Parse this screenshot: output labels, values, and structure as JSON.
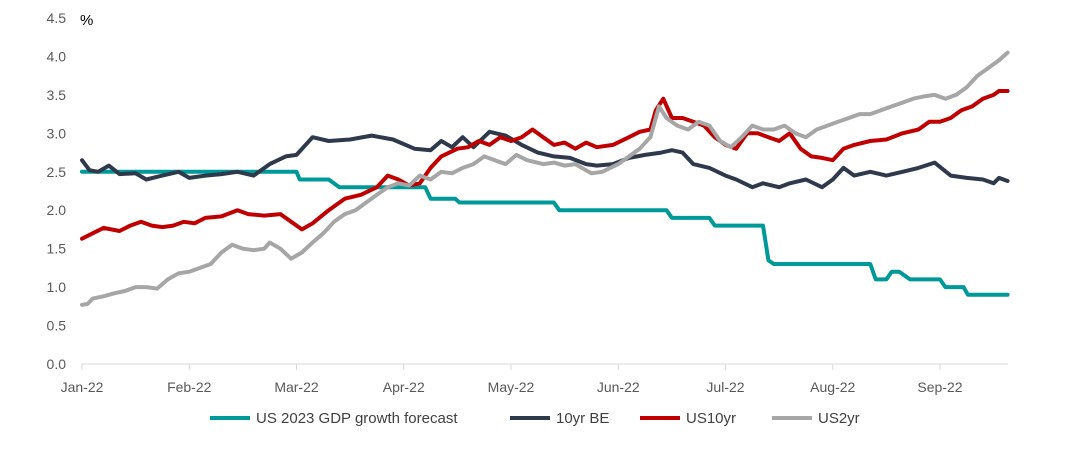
{
  "chart_data": {
    "type": "line",
    "ylabel": "%",
    "ylim": [
      0,
      4.5
    ],
    "y_ticks": [
      "0.0",
      "0.5",
      "1.0",
      "1.5",
      "2.0",
      "2.5",
      "3.0",
      "3.5",
      "4.0",
      "4.5"
    ],
    "x_ticks": [
      "Jan-22",
      "Feb-22",
      "Mar-22",
      "Apr-22",
      "May-22",
      "Jun-22",
      "Jul-22",
      "Aug-22",
      "Sep-22"
    ],
    "xlim": [
      0,
      8.63
    ],
    "grid": false,
    "legend_position": "bottom",
    "series": [
      {
        "name": "US 2023 GDP growth forecast",
        "color": "#009999",
        "points": [
          [
            0,
            2.5
          ],
          [
            2.0,
            2.5
          ],
          [
            2.03,
            2.4
          ],
          [
            2.3,
            2.4
          ],
          [
            2.4,
            2.3
          ],
          [
            3.2,
            2.3
          ],
          [
            3.25,
            2.15
          ],
          [
            3.48,
            2.15
          ],
          [
            3.52,
            2.1
          ],
          [
            4.4,
            2.1
          ],
          [
            4.45,
            2.0
          ],
          [
            5.45,
            2.0
          ],
          [
            5.5,
            1.9
          ],
          [
            5.85,
            1.9
          ],
          [
            5.9,
            1.8
          ],
          [
            6.35,
            1.8
          ],
          [
            6.4,
            1.35
          ],
          [
            6.45,
            1.3
          ],
          [
            7.35,
            1.3
          ],
          [
            7.4,
            1.1
          ],
          [
            7.5,
            1.1
          ],
          [
            7.55,
            1.2
          ],
          [
            7.62,
            1.2
          ],
          [
            7.72,
            1.1
          ],
          [
            8.0,
            1.1
          ],
          [
            8.05,
            1.0
          ],
          [
            8.22,
            1.0
          ],
          [
            8.26,
            0.9
          ],
          [
            8.63,
            0.9
          ]
        ]
      },
      {
        "name": "10yr BE",
        "color": "#2E3A4B",
        "points": [
          [
            0,
            2.65
          ],
          [
            0.07,
            2.52
          ],
          [
            0.15,
            2.5
          ],
          [
            0.25,
            2.58
          ],
          [
            0.35,
            2.47
          ],
          [
            0.5,
            2.48
          ],
          [
            0.6,
            2.4
          ],
          [
            0.75,
            2.45
          ],
          [
            0.9,
            2.5
          ],
          [
            1.0,
            2.42
          ],
          [
            1.15,
            2.45
          ],
          [
            1.3,
            2.47
          ],
          [
            1.45,
            2.5
          ],
          [
            1.6,
            2.45
          ],
          [
            1.75,
            2.6
          ],
          [
            1.9,
            2.7
          ],
          [
            2.0,
            2.72
          ],
          [
            2.15,
            2.95
          ],
          [
            2.3,
            2.9
          ],
          [
            2.5,
            2.92
          ],
          [
            2.7,
            2.97
          ],
          [
            2.9,
            2.92
          ],
          [
            3.1,
            2.8
          ],
          [
            3.25,
            2.78
          ],
          [
            3.35,
            2.9
          ],
          [
            3.45,
            2.82
          ],
          [
            3.55,
            2.95
          ],
          [
            3.65,
            2.82
          ],
          [
            3.8,
            3.02
          ],
          [
            3.95,
            2.97
          ],
          [
            4.1,
            2.85
          ],
          [
            4.25,
            2.75
          ],
          [
            4.4,
            2.7
          ],
          [
            4.55,
            2.68
          ],
          [
            4.7,
            2.6
          ],
          [
            4.8,
            2.58
          ],
          [
            4.95,
            2.6
          ],
          [
            5.1,
            2.68
          ],
          [
            5.25,
            2.72
          ],
          [
            5.4,
            2.75
          ],
          [
            5.5,
            2.78
          ],
          [
            5.6,
            2.75
          ],
          [
            5.7,
            2.6
          ],
          [
            5.85,
            2.55
          ],
          [
            6.0,
            2.45
          ],
          [
            6.1,
            2.4
          ],
          [
            6.25,
            2.3
          ],
          [
            6.35,
            2.35
          ],
          [
            6.5,
            2.3
          ],
          [
            6.6,
            2.35
          ],
          [
            6.75,
            2.4
          ],
          [
            6.9,
            2.3
          ],
          [
            7.0,
            2.4
          ],
          [
            7.1,
            2.55
          ],
          [
            7.2,
            2.45
          ],
          [
            7.35,
            2.5
          ],
          [
            7.5,
            2.45
          ],
          [
            7.65,
            2.5
          ],
          [
            7.8,
            2.55
          ],
          [
            7.95,
            2.62
          ],
          [
            8.1,
            2.45
          ],
          [
            8.25,
            2.42
          ],
          [
            8.4,
            2.4
          ],
          [
            8.5,
            2.35
          ],
          [
            8.55,
            2.42
          ],
          [
            8.63,
            2.38
          ]
        ]
      },
      {
        "name": "US10yr",
        "color": "#C00000",
        "points": [
          [
            0,
            1.63
          ],
          [
            0.1,
            1.7
          ],
          [
            0.2,
            1.77
          ],
          [
            0.35,
            1.73
          ],
          [
            0.45,
            1.8
          ],
          [
            0.55,
            1.85
          ],
          [
            0.65,
            1.8
          ],
          [
            0.75,
            1.78
          ],
          [
            0.85,
            1.8
          ],
          [
            0.95,
            1.85
          ],
          [
            1.05,
            1.83
          ],
          [
            1.15,
            1.9
          ],
          [
            1.3,
            1.92
          ],
          [
            1.45,
            2.0
          ],
          [
            1.55,
            1.95
          ],
          [
            1.7,
            1.93
          ],
          [
            1.85,
            1.95
          ],
          [
            1.95,
            1.85
          ],
          [
            2.05,
            1.75
          ],
          [
            2.15,
            1.83
          ],
          [
            2.3,
            2.0
          ],
          [
            2.45,
            2.15
          ],
          [
            2.6,
            2.2
          ],
          [
            2.75,
            2.3
          ],
          [
            2.85,
            2.45
          ],
          [
            2.95,
            2.4
          ],
          [
            3.05,
            2.32
          ],
          [
            3.15,
            2.35
          ],
          [
            3.25,
            2.55
          ],
          [
            3.35,
            2.7
          ],
          [
            3.5,
            2.8
          ],
          [
            3.6,
            2.82
          ],
          [
            3.7,
            2.9
          ],
          [
            3.8,
            2.85
          ],
          [
            3.9,
            2.95
          ],
          [
            4.0,
            2.9
          ],
          [
            4.1,
            2.95
          ],
          [
            4.2,
            3.05
          ],
          [
            4.3,
            2.95
          ],
          [
            4.4,
            2.85
          ],
          [
            4.5,
            2.88
          ],
          [
            4.6,
            2.8
          ],
          [
            4.7,
            2.88
          ],
          [
            4.8,
            2.82
          ],
          [
            4.95,
            2.85
          ],
          [
            5.1,
            2.95
          ],
          [
            5.2,
            3.02
          ],
          [
            5.3,
            3.05
          ],
          [
            5.35,
            3.3
          ],
          [
            5.42,
            3.45
          ],
          [
            5.5,
            3.2
          ],
          [
            5.6,
            3.2
          ],
          [
            5.7,
            3.15
          ],
          [
            5.8,
            3.1
          ],
          [
            5.9,
            2.95
          ],
          [
            6.0,
            2.85
          ],
          [
            6.1,
            2.8
          ],
          [
            6.2,
            3.0
          ],
          [
            6.3,
            3.0
          ],
          [
            6.4,
            2.95
          ],
          [
            6.5,
            2.9
          ],
          [
            6.6,
            3.0
          ],
          [
            6.7,
            2.8
          ],
          [
            6.8,
            2.7
          ],
          [
            6.9,
            2.68
          ],
          [
            7.0,
            2.65
          ],
          [
            7.1,
            2.8
          ],
          [
            7.2,
            2.85
          ],
          [
            7.35,
            2.9
          ],
          [
            7.5,
            2.92
          ],
          [
            7.65,
            3.0
          ],
          [
            7.8,
            3.05
          ],
          [
            7.9,
            3.15
          ],
          [
            8.0,
            3.15
          ],
          [
            8.1,
            3.2
          ],
          [
            8.2,
            3.3
          ],
          [
            8.3,
            3.35
          ],
          [
            8.4,
            3.45
          ],
          [
            8.5,
            3.5
          ],
          [
            8.55,
            3.55
          ],
          [
            8.63,
            3.55
          ]
        ]
      },
      {
        "name": "US2yr",
        "color": "#A6A6A6",
        "points": [
          [
            0,
            0.77
          ],
          [
            0.05,
            0.78
          ],
          [
            0.1,
            0.85
          ],
          [
            0.2,
            0.88
          ],
          [
            0.3,
            0.92
          ],
          [
            0.4,
            0.95
          ],
          [
            0.5,
            1.0
          ],
          [
            0.6,
            1.0
          ],
          [
            0.7,
            0.98
          ],
          [
            0.8,
            1.1
          ],
          [
            0.9,
            1.18
          ],
          [
            1.0,
            1.2
          ],
          [
            1.1,
            1.25
          ],
          [
            1.2,
            1.3
          ],
          [
            1.3,
            1.45
          ],
          [
            1.4,
            1.55
          ],
          [
            1.5,
            1.5
          ],
          [
            1.6,
            1.48
          ],
          [
            1.7,
            1.5
          ],
          [
            1.75,
            1.58
          ],
          [
            1.85,
            1.5
          ],
          [
            1.95,
            1.37
          ],
          [
            2.05,
            1.45
          ],
          [
            2.15,
            1.58
          ],
          [
            2.25,
            1.7
          ],
          [
            2.35,
            1.85
          ],
          [
            2.45,
            1.95
          ],
          [
            2.55,
            2.0
          ],
          [
            2.65,
            2.1
          ],
          [
            2.75,
            2.2
          ],
          [
            2.85,
            2.3
          ],
          [
            2.95,
            2.35
          ],
          [
            3.05,
            2.32
          ],
          [
            3.15,
            2.45
          ],
          [
            3.25,
            2.4
          ],
          [
            3.35,
            2.5
          ],
          [
            3.45,
            2.48
          ],
          [
            3.55,
            2.55
          ],
          [
            3.65,
            2.6
          ],
          [
            3.75,
            2.7
          ],
          [
            3.85,
            2.65
          ],
          [
            3.95,
            2.6
          ],
          [
            4.05,
            2.72
          ],
          [
            4.15,
            2.65
          ],
          [
            4.3,
            2.6
          ],
          [
            4.4,
            2.62
          ],
          [
            4.5,
            2.58
          ],
          [
            4.6,
            2.6
          ],
          [
            4.75,
            2.48
          ],
          [
            4.85,
            2.5
          ],
          [
            5.0,
            2.6
          ],
          [
            5.1,
            2.7
          ],
          [
            5.2,
            2.8
          ],
          [
            5.3,
            2.95
          ],
          [
            5.38,
            3.35
          ],
          [
            5.45,
            3.2
          ],
          [
            5.55,
            3.1
          ],
          [
            5.65,
            3.05
          ],
          [
            5.75,
            3.15
          ],
          [
            5.85,
            3.1
          ],
          [
            5.95,
            2.9
          ],
          [
            6.05,
            2.82
          ],
          [
            6.15,
            2.95
          ],
          [
            6.25,
            3.1
          ],
          [
            6.35,
            3.05
          ],
          [
            6.45,
            3.05
          ],
          [
            6.55,
            3.1
          ],
          [
            6.65,
            3.0
          ],
          [
            6.75,
            2.95
          ],
          [
            6.85,
            3.05
          ],
          [
            6.95,
            3.1
          ],
          [
            7.05,
            3.15
          ],
          [
            7.15,
            3.2
          ],
          [
            7.25,
            3.25
          ],
          [
            7.35,
            3.25
          ],
          [
            7.45,
            3.3
          ],
          [
            7.55,
            3.35
          ],
          [
            7.65,
            3.4
          ],
          [
            7.75,
            3.45
          ],
          [
            7.85,
            3.48
          ],
          [
            7.95,
            3.5
          ],
          [
            8.05,
            3.45
          ],
          [
            8.15,
            3.5
          ],
          [
            8.25,
            3.6
          ],
          [
            8.35,
            3.75
          ],
          [
            8.45,
            3.85
          ],
          [
            8.55,
            3.95
          ],
          [
            8.63,
            4.05
          ]
        ]
      }
    ]
  }
}
